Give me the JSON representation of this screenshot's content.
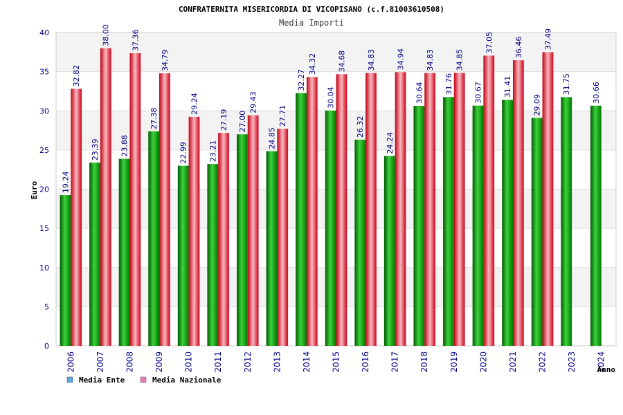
{
  "chart_data": {
    "type": "bar",
    "title": "CONFRATERNITA MISERICORDIA DI VICOPISANO (c.f.81003610508)",
    "subtitle": "Media Importi",
    "xlabel": "Anno",
    "ylabel": "Euro",
    "ylim": [
      0,
      40
    ],
    "yticks": [
      "0",
      "5",
      "10",
      "15",
      "20",
      "25",
      "30",
      "35",
      "40"
    ],
    "categories": [
      "2006",
      "2007",
      "2008",
      "2009",
      "2010",
      "2011",
      "2012",
      "2013",
      "2014",
      "2015",
      "2016",
      "2017",
      "2018",
      "2019",
      "2020",
      "2021",
      "2022",
      "2023",
      "2024"
    ],
    "series": [
      {
        "name": "Media Ente",
        "legend_color": "#5fa8e8",
        "bar_color": "#00a000",
        "values": [
          19.24,
          23.39,
          23.88,
          27.38,
          22.99,
          23.21,
          27.0,
          24.85,
          32.27,
          30.04,
          26.32,
          24.24,
          30.64,
          31.76,
          30.67,
          31.41,
          29.09,
          31.75,
          30.66
        ],
        "labels": [
          "19.24",
          "23.39",
          "23.88",
          "27.38",
          "22.99",
          "23.21",
          "27.00",
          "24.85",
          "32.27",
          "30.04",
          "26.32",
          "24.24",
          "30.64",
          "31.76",
          "30.67",
          "31.41",
          "29.09",
          "31.75",
          "30.66"
        ]
      },
      {
        "name": "Media Nazionale",
        "legend_color": "#e080b8",
        "bar_color": "#e01818",
        "values": [
          32.82,
          38.0,
          37.36,
          34.79,
          29.24,
          27.19,
          29.43,
          27.71,
          34.32,
          34.68,
          34.83,
          34.94,
          34.83,
          34.85,
          37.05,
          36.46,
          37.49,
          null,
          null
        ],
        "labels": [
          "32.82",
          "38.00",
          "37.36",
          "34.79",
          "29.24",
          "27.19",
          "29.43",
          "27.71",
          "34.32",
          "34.68",
          "34.83",
          "34.94",
          "34.83",
          "34.85",
          "37.05",
          "36.46",
          "37.49",
          null,
          null
        ]
      }
    ],
    "grid": true,
    "legend_position": "bottom-left"
  }
}
